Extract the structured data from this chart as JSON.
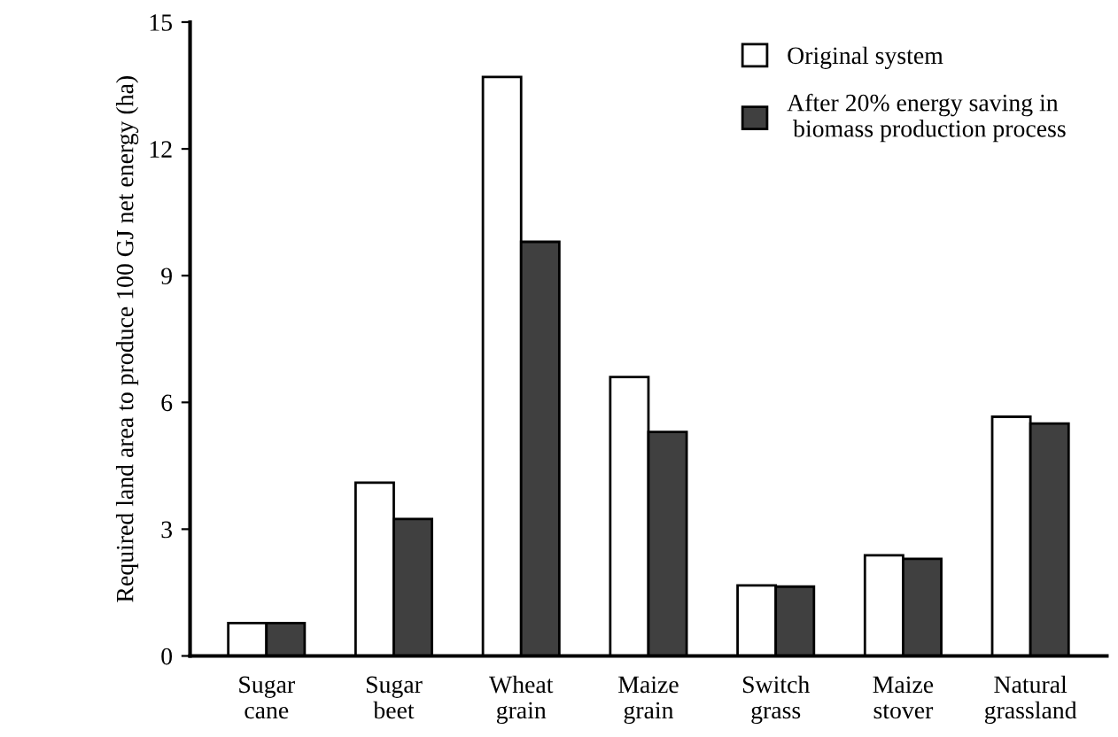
{
  "chart_data": {
    "type": "bar",
    "ylabel": "Required land area to produce 100 GJ net energy (ha)",
    "categories": [
      "Sugar\ncane",
      "Sugar\nbeet",
      "Wheat\ngrain",
      "Maize\ngrain",
      "Switch\ngrass",
      "Maize\nstover",
      "Natural\ngrassland"
    ],
    "series": [
      {
        "name": "Original system",
        "color": "#ffffff",
        "values": [
          0.78,
          4.1,
          13.7,
          6.6,
          1.67,
          2.38,
          5.66
        ]
      },
      {
        "name": "After 20% energy saving in\n biomass production process",
        "color": "#404040",
        "values": [
          0.78,
          3.24,
          9.8,
          5.3,
          1.64,
          2.3,
          5.5
        ]
      }
    ],
    "ylim": [
      0,
      15
    ],
    "yticks": [
      0,
      3,
      6,
      9,
      12,
      15
    ],
    "grid": false,
    "legend": "top right"
  }
}
